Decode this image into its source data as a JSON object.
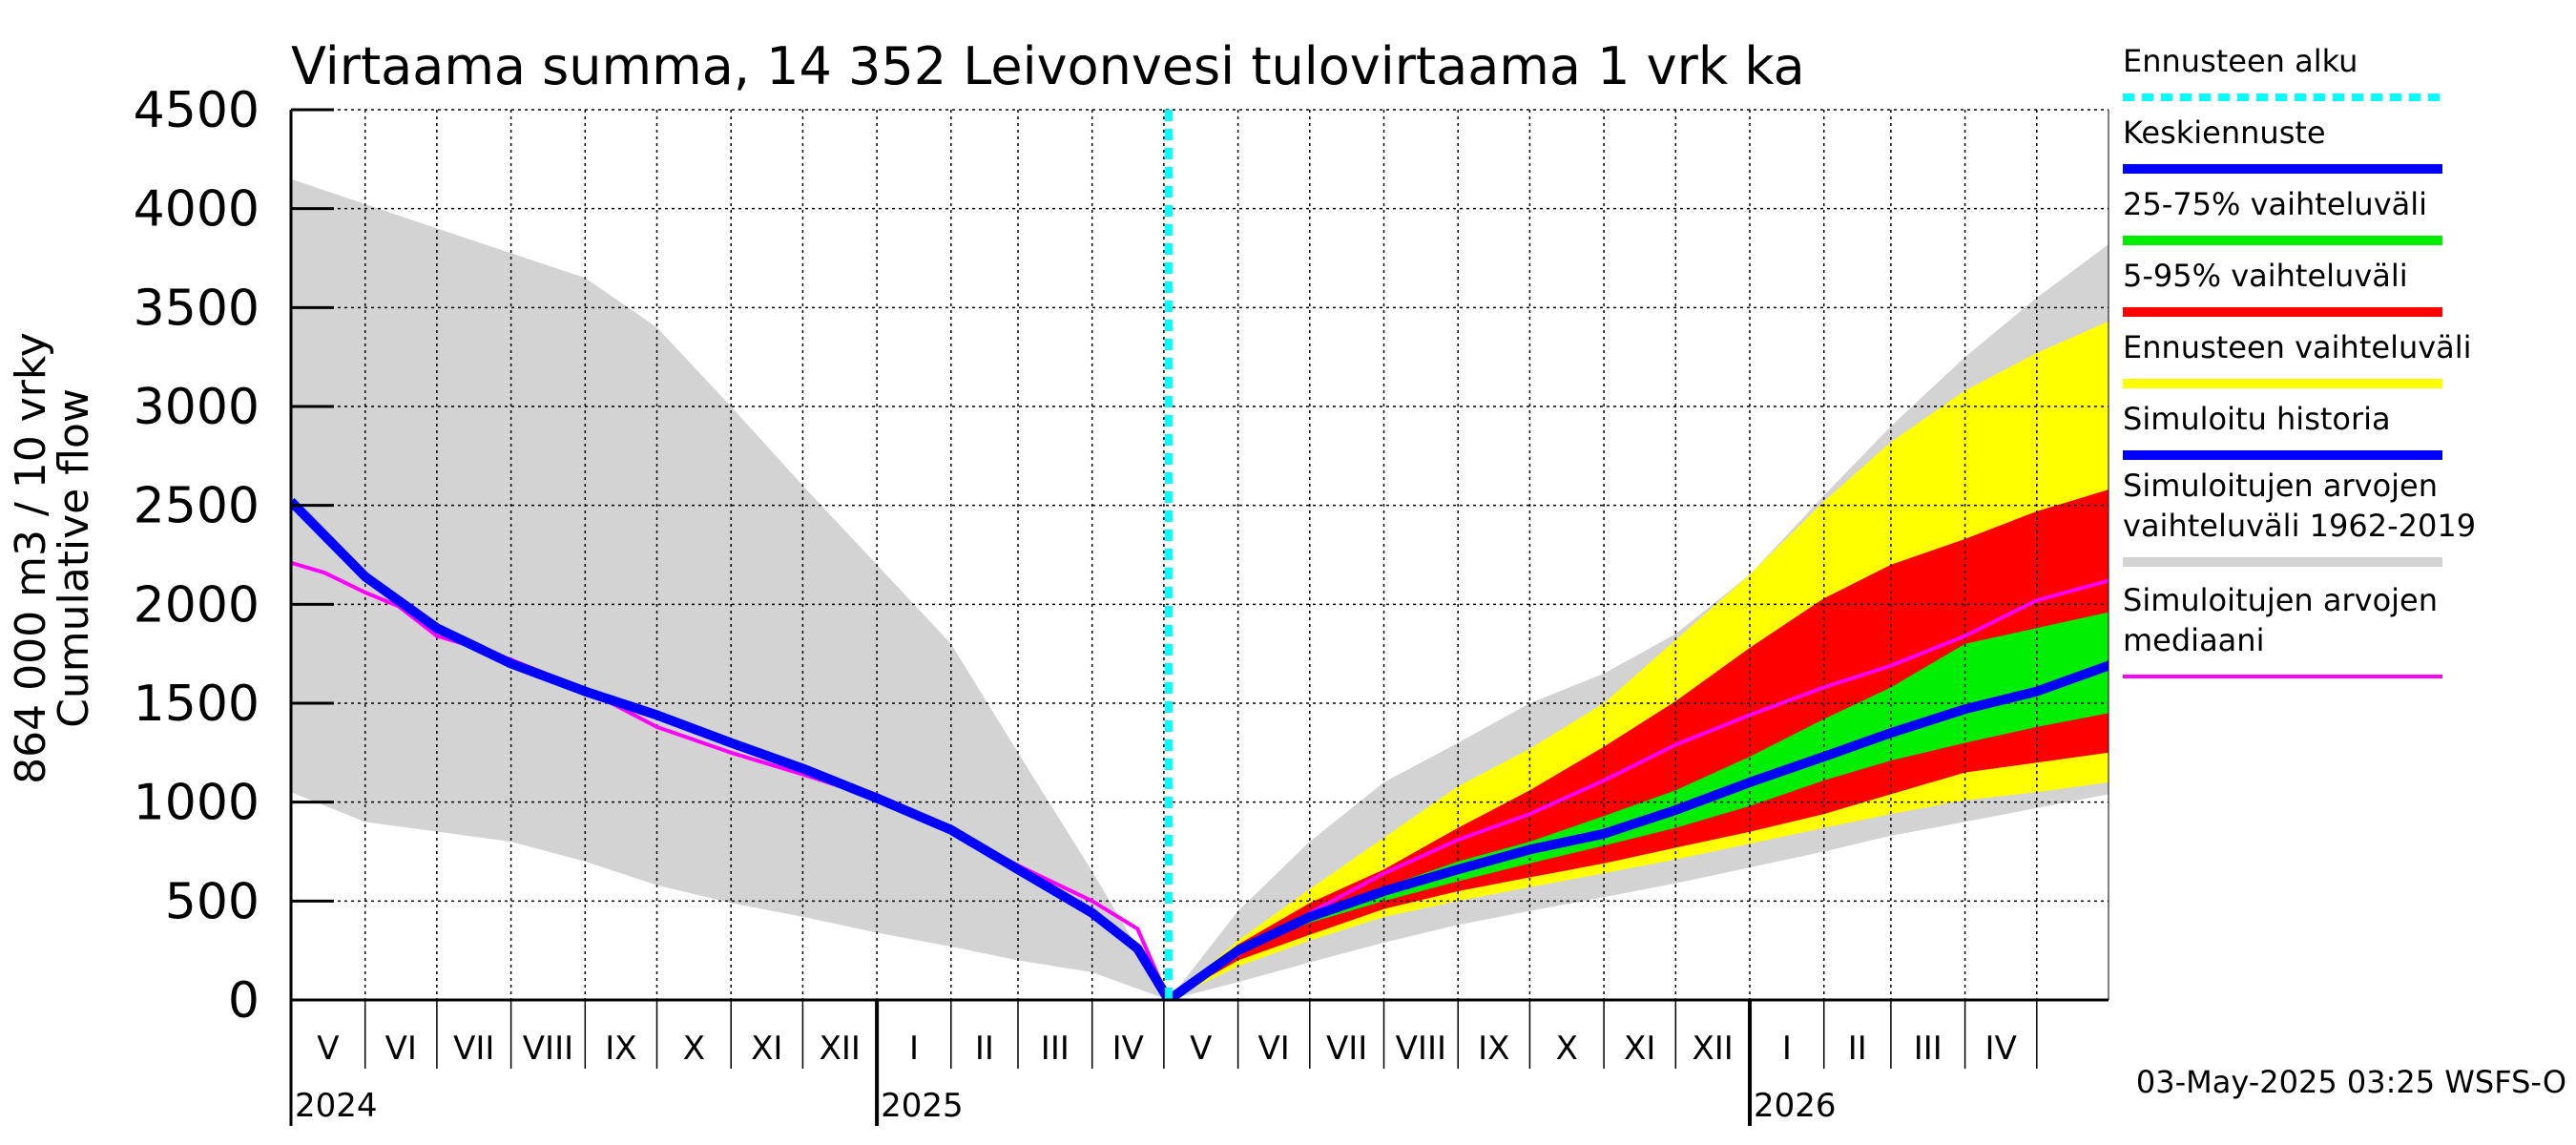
{
  "chart_data": {
    "type": "area",
    "title": "Virtaama summa, 14 352 Leivonvesi tulovirtaama 1 vrk ka",
    "ylabel_lines": [
      "Cumulative flow",
      "864 000 m3 / 10 vrky"
    ],
    "ylim": [
      0,
      4500
    ],
    "yticks": [
      0,
      500,
      1000,
      1500,
      2000,
      2500,
      3000,
      3500,
      4000,
      4500
    ],
    "x_range": [
      "2024-05-01",
      "2026-05-31"
    ],
    "grid": true,
    "month_labels": [
      "V",
      "VI",
      "VII",
      "VIII",
      "IX",
      "X",
      "XI",
      "XII",
      "I",
      "II",
      "III",
      "IV",
      "V",
      "VI",
      "VII",
      "VIII",
      "IX",
      "X",
      "XI",
      "XII",
      "I",
      "II",
      "III",
      "IV"
    ],
    "year_labels": [
      {
        "label": "2024",
        "date": "2024-05-01"
      },
      {
        "label": "2025",
        "date": "2025-01-01"
      },
      {
        "label": "2026",
        "date": "2026-01-01"
      }
    ],
    "forecast_start": "2025-05-03",
    "bands": [
      {
        "name": "Simuloitujen arvojen vaihteluväli 1962-2019",
        "color": "#d3d3d3",
        "upper": [
          [
            "2024-05-01",
            4150
          ],
          [
            "2024-07-01",
            3900
          ],
          [
            "2024-09-01",
            3650
          ],
          [
            "2024-10-01",
            3400
          ],
          [
            "2024-11-01",
            3000
          ],
          [
            "2024-12-01",
            2600
          ],
          [
            "2025-01-01",
            2200
          ],
          [
            "2025-02-01",
            1800
          ],
          [
            "2025-03-01",
            1250
          ],
          [
            "2025-04-01",
            650
          ],
          [
            "2025-05-03",
            0
          ],
          [
            "2025-06-01",
            450
          ],
          [
            "2025-07-01",
            800
          ],
          [
            "2025-08-01",
            1100
          ],
          [
            "2025-09-01",
            1300
          ],
          [
            "2025-10-01",
            1500
          ],
          [
            "2025-11-01",
            1650
          ],
          [
            "2025-12-01",
            1850
          ],
          [
            "2026-01-01",
            2150
          ],
          [
            "2026-02-01",
            2550
          ],
          [
            "2026-03-01",
            2900
          ],
          [
            "2026-04-01",
            3250
          ],
          [
            "2026-05-01",
            3550
          ],
          [
            "2026-05-31",
            3820
          ],
          [
            "2026-06-30",
            4150
          ]
        ],
        "lower": [
          [
            "2024-05-01",
            1050
          ],
          [
            "2024-06-01",
            900
          ],
          [
            "2024-08-01",
            800
          ],
          [
            "2024-09-01",
            700
          ],
          [
            "2024-10-01",
            580
          ],
          [
            "2024-11-01",
            490
          ],
          [
            "2024-12-01",
            420
          ],
          [
            "2025-01-01",
            340
          ],
          [
            "2025-02-01",
            270
          ],
          [
            "2025-03-01",
            200
          ],
          [
            "2025-04-01",
            140
          ],
          [
            "2025-05-03",
            0
          ],
          [
            "2025-06-01",
            90
          ],
          [
            "2025-07-01",
            190
          ],
          [
            "2025-08-01",
            290
          ],
          [
            "2025-09-01",
            380
          ],
          [
            "2025-10-01",
            450
          ],
          [
            "2025-11-01",
            520
          ],
          [
            "2025-12-01",
            590
          ],
          [
            "2026-01-01",
            670
          ],
          [
            "2026-02-01",
            750
          ],
          [
            "2026-03-01",
            830
          ],
          [
            "2026-04-01",
            900
          ],
          [
            "2026-05-01",
            970
          ],
          [
            "2026-05-31",
            1040
          ],
          [
            "2026-06-30",
            1080
          ]
        ]
      },
      {
        "name": "Ennusteen vaihteluväli",
        "color": "#ffff00",
        "upper": [
          [
            "2025-05-03",
            0
          ],
          [
            "2025-06-01",
            300
          ],
          [
            "2025-07-01",
            560
          ],
          [
            "2025-08-01",
            820
          ],
          [
            "2025-09-01",
            1080
          ],
          [
            "2025-10-01",
            1270
          ],
          [
            "2025-11-01",
            1500
          ],
          [
            "2025-12-01",
            1820
          ],
          [
            "2026-01-01",
            2150
          ],
          [
            "2026-02-01",
            2520
          ],
          [
            "2026-03-01",
            2820
          ],
          [
            "2026-04-01",
            3080
          ],
          [
            "2026-05-01",
            3270
          ],
          [
            "2026-05-31",
            3430
          ],
          [
            "2026-06-10",
            3490
          ]
        ],
        "lower": [
          [
            "2025-05-03",
            0
          ],
          [
            "2025-06-01",
            170
          ],
          [
            "2025-07-01",
            300
          ],
          [
            "2025-08-01",
            420
          ],
          [
            "2025-09-01",
            500
          ],
          [
            "2025-10-01",
            570
          ],
          [
            "2025-11-01",
            640
          ],
          [
            "2025-12-01",
            710
          ],
          [
            "2026-01-01",
            790
          ],
          [
            "2026-02-01",
            870
          ],
          [
            "2026-03-01",
            940
          ],
          [
            "2026-04-01",
            1010
          ],
          [
            "2026-05-01",
            1050
          ],
          [
            "2026-05-31",
            1100
          ],
          [
            "2026-06-10",
            1110
          ]
        ]
      },
      {
        "name": "5-95% vaihteluväli",
        "color": "#ff0000",
        "upper": [
          [
            "2025-05-03",
            0
          ],
          [
            "2025-06-01",
            280
          ],
          [
            "2025-07-01",
            490
          ],
          [
            "2025-08-01",
            660
          ],
          [
            "2025-09-01",
            870
          ],
          [
            "2025-10-01",
            1060
          ],
          [
            "2025-11-01",
            1280
          ],
          [
            "2025-12-01",
            1510
          ],
          [
            "2026-01-01",
            1780
          ],
          [
            "2026-02-01",
            2030
          ],
          [
            "2026-03-01",
            2200
          ],
          [
            "2026-04-01",
            2330
          ],
          [
            "2026-05-01",
            2470
          ],
          [
            "2026-05-31",
            2580
          ],
          [
            "2026-06-10",
            2630
          ]
        ],
        "lower": [
          [
            "2025-05-03",
            0
          ],
          [
            "2025-06-01",
            200
          ],
          [
            "2025-07-01",
            330
          ],
          [
            "2025-08-01",
            460
          ],
          [
            "2025-09-01",
            550
          ],
          [
            "2025-10-01",
            620
          ],
          [
            "2025-11-01",
            690
          ],
          [
            "2025-12-01",
            770
          ],
          [
            "2026-01-01",
            850
          ],
          [
            "2026-02-01",
            940
          ],
          [
            "2026-03-01",
            1040
          ],
          [
            "2026-04-01",
            1150
          ],
          [
            "2026-05-01",
            1200
          ],
          [
            "2026-05-31",
            1250
          ],
          [
            "2026-06-10",
            1260
          ]
        ]
      },
      {
        "name": "25-75% vaihteluväli",
        "color": "#00ee00",
        "upper": [
          [
            "2025-05-03",
            0
          ],
          [
            "2025-06-01",
            270
          ],
          [
            "2025-07-01",
            440
          ],
          [
            "2025-08-01",
            570
          ],
          [
            "2025-09-01",
            700
          ],
          [
            "2025-10-01",
            800
          ],
          [
            "2025-11-01",
            930
          ],
          [
            "2025-12-01",
            1060
          ],
          [
            "2026-01-01",
            1230
          ],
          [
            "2026-02-01",
            1420
          ],
          [
            "2026-03-01",
            1580
          ],
          [
            "2026-04-01",
            1800
          ],
          [
            "2026-05-01",
            1880
          ],
          [
            "2026-05-31",
            1960
          ],
          [
            "2026-06-10",
            2010
          ]
        ],
        "lower": [
          [
            "2025-05-03",
            0
          ],
          [
            "2025-06-01",
            240
          ],
          [
            "2025-07-01",
            390
          ],
          [
            "2025-08-01",
            500
          ],
          [
            "2025-09-01",
            600
          ],
          [
            "2025-10-01",
            690
          ],
          [
            "2025-11-01",
            780
          ],
          [
            "2025-12-01",
            870
          ],
          [
            "2026-01-01",
            980
          ],
          [
            "2026-02-01",
            1110
          ],
          [
            "2026-03-01",
            1210
          ],
          [
            "2026-04-01",
            1300
          ],
          [
            "2026-05-01",
            1380
          ],
          [
            "2026-05-31",
            1450
          ],
          [
            "2026-06-10",
            1490
          ]
        ]
      }
    ],
    "lines": [
      {
        "name": "Simuloitujen arvojen mediaani",
        "color": "#ff00ff",
        "points": [
          [
            "2024-05-01",
            2210
          ],
          [
            "2024-05-15",
            2160
          ],
          [
            "2024-06-01",
            2060
          ],
          [
            "2024-06-15",
            1990
          ],
          [
            "2024-07-01",
            1840
          ],
          [
            "2024-07-15",
            1790
          ],
          [
            "2024-08-01",
            1720
          ],
          [
            "2024-09-01",
            1570
          ],
          [
            "2024-10-01",
            1380
          ],
          [
            "2024-11-01",
            1250
          ],
          [
            "2024-12-01",
            1140
          ],
          [
            "2025-01-01",
            1020
          ],
          [
            "2025-02-01",
            860
          ],
          [
            "2025-03-01",
            680
          ],
          [
            "2025-04-01",
            500
          ],
          [
            "2025-04-20",
            360
          ],
          [
            "2025-05-03",
            0
          ],
          [
            "2025-06-01",
            230
          ],
          [
            "2025-07-01",
            440
          ],
          [
            "2025-08-01",
            640
          ],
          [
            "2025-09-01",
            810
          ],
          [
            "2025-10-01",
            940
          ],
          [
            "2025-11-01",
            1110
          ],
          [
            "2025-12-01",
            1290
          ],
          [
            "2026-01-01",
            1440
          ],
          [
            "2026-02-01",
            1580
          ],
          [
            "2026-03-01",
            1690
          ],
          [
            "2026-04-01",
            1840
          ],
          [
            "2026-05-01",
            2020
          ],
          [
            "2026-05-31",
            2120
          ],
          [
            "2026-06-10",
            2200
          ]
        ]
      },
      {
        "name": "Simuloitu historia",
        "color": "#0000ff",
        "points": [
          [
            "2024-05-01",
            2520
          ],
          [
            "2024-06-01",
            2140
          ],
          [
            "2024-07-01",
            1880
          ],
          [
            "2024-08-01",
            1700
          ],
          [
            "2024-09-01",
            1560
          ],
          [
            "2024-10-01",
            1440
          ],
          [
            "2024-11-01",
            1300
          ],
          [
            "2024-12-01",
            1170
          ],
          [
            "2025-01-01",
            1020
          ],
          [
            "2025-02-01",
            860
          ],
          [
            "2025-03-01",
            660
          ],
          [
            "2025-04-01",
            440
          ],
          [
            "2025-04-20",
            260
          ],
          [
            "2025-05-03",
            0
          ]
        ]
      },
      {
        "name": "Keskiennuste",
        "color": "#0000ff",
        "points": [
          [
            "2025-05-03",
            0
          ],
          [
            "2025-06-01",
            250
          ],
          [
            "2025-07-01",
            420
          ],
          [
            "2025-08-01",
            550
          ],
          [
            "2025-09-01",
            660
          ],
          [
            "2025-10-01",
            760
          ],
          [
            "2025-11-01",
            840
          ],
          [
            "2025-12-01",
            960
          ],
          [
            "2026-01-01",
            1100
          ],
          [
            "2026-02-01",
            1230
          ],
          [
            "2026-03-01",
            1350
          ],
          [
            "2026-04-01",
            1470
          ],
          [
            "2026-05-01",
            1560
          ],
          [
            "2026-05-31",
            1690
          ],
          [
            "2026-06-10",
            1760
          ]
        ]
      }
    ],
    "legend": [
      {
        "label": "Ennusteen alku",
        "color": "#00ffff",
        "style": "dashed"
      },
      {
        "label": "Keskiennuste",
        "color": "#0000ff",
        "style": "line"
      },
      {
        "label": "25-75% vaihteluväli",
        "color": "#00ee00",
        "style": "line"
      },
      {
        "label": "5-95% vaihteluväli",
        "color": "#ff0000",
        "style": "line"
      },
      {
        "label": "Ennusteen vaihteluväli",
        "color": "#ffff00",
        "style": "line"
      },
      {
        "label": "Simuloitu historia",
        "color": "#0000ff",
        "style": "line"
      },
      {
        "label": "Simuloitujen arvojen vaihteluväli 1962-2019",
        "color": "#d3d3d3",
        "style": "line"
      },
      {
        "label": "Simuloitujen arvojen mediaani",
        "color": "#ff00ff",
        "style": "thin"
      }
    ],
    "legend_placement": "right"
  },
  "footer": "03-May-2025 03:25 WSFS-O"
}
